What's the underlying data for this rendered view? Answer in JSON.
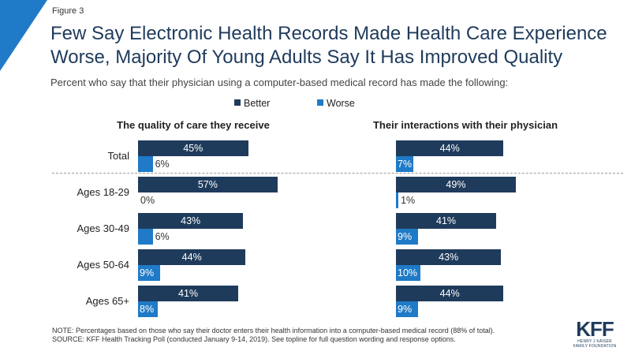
{
  "figure_label": "Figure 3",
  "title_line1": "Few Say Electronic Health Records Made Health Care Experience",
  "title_line2": "Worse, Majority Of Young Adults Say It Has Improved Quality",
  "subtitle": "Percent who say that their physician using a computer-based medical record has made the following:",
  "colors": {
    "better": "#1f3b5c",
    "worse": "#1f7ac7",
    "accent": "#1f7ac7"
  },
  "note": "NOTE: Percentages based on those who say their doctor enters their health information into a computer-based medical record (88% of total).",
  "source": "SOURCE: KFF Health Tracking Poll (conducted January 9-14, 2019). See topline for full question wording and response options.",
  "logo": {
    "main": "KFF",
    "sub1": "HENRY J KAISER",
    "sub2": "FAMILY FOUNDATION"
  },
  "chart_data": [
    {
      "type": "bar",
      "orientation": "horizontal",
      "title": "The quality of care they receive",
      "categories": [
        "Total",
        "Ages 18-29",
        "Ages 30-49",
        "Ages 50-64",
        "Ages 65+"
      ],
      "series": [
        {
          "name": "Better",
          "values": [
            45,
            57,
            43,
            44,
            41
          ]
        },
        {
          "name": "Worse",
          "values": [
            6,
            0,
            6,
            9,
            8
          ]
        }
      ]
    },
    {
      "type": "bar",
      "orientation": "horizontal",
      "title": "Their interactions with their physician",
      "categories": [
        "Total",
        "Ages 18-29",
        "Ages 30-49",
        "Ages 50-64",
        "Ages 65+"
      ],
      "series": [
        {
          "name": "Better",
          "values": [
            44,
            49,
            41,
            43,
            44
          ]
        },
        {
          "name": "Worse",
          "values": [
            7,
            1,
            9,
            10,
            9
          ]
        }
      ]
    }
  ]
}
